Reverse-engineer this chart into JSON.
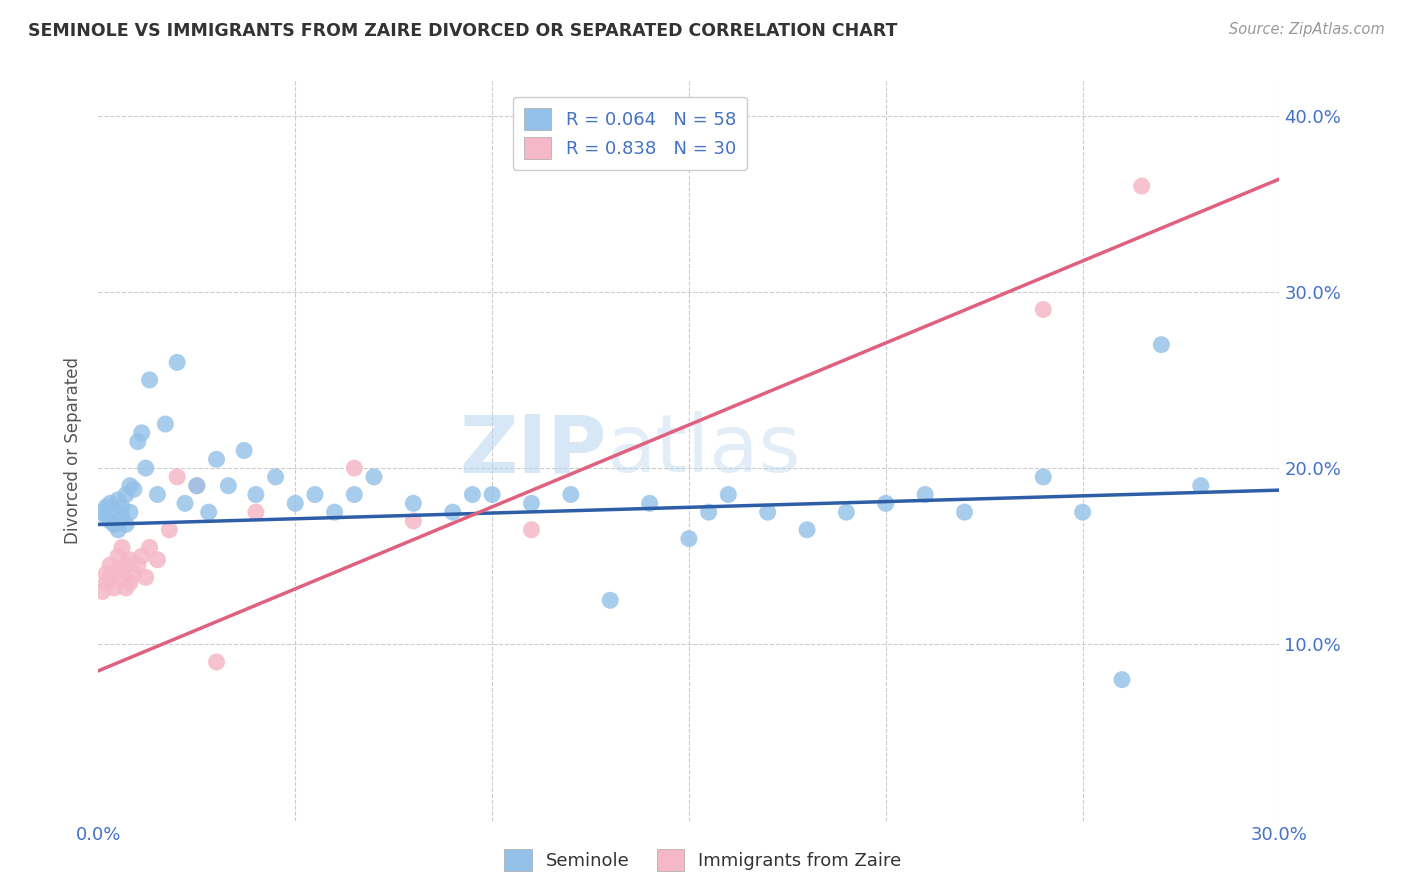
{
  "title": "SEMINOLE VS IMMIGRANTS FROM ZAIRE DIVORCED OR SEPARATED CORRELATION CHART",
  "source": "Source: ZipAtlas.com",
  "ylabel": "Divorced or Separated",
  "xlim": [
    0.0,
    0.3
  ],
  "ylim": [
    0.0,
    0.42
  ],
  "legend_blue_label": "R = 0.064   N = 58",
  "legend_pink_label": "R = 0.838   N = 30",
  "seminole_label": "Seminole",
  "zaire_label": "Immigrants from Zaire",
  "blue_color": "#92c0e8",
  "pink_color": "#f5b8c8",
  "blue_line_color": "#2e5ea8",
  "pink_line_color": "#e06080",
  "watermark_text": "ZIPatlas",
  "seminole_x": [
    0.001,
    0.002,
    0.002,
    0.003,
    0.003,
    0.004,
    0.004,
    0.005,
    0.005,
    0.006,
    0.006,
    0.007,
    0.007,
    0.008,
    0.008,
    0.009,
    0.01,
    0.011,
    0.012,
    0.013,
    0.015,
    0.017,
    0.02,
    0.022,
    0.025,
    0.028,
    0.03,
    0.033,
    0.037,
    0.04,
    0.045,
    0.05,
    0.055,
    0.06,
    0.065,
    0.07,
    0.08,
    0.09,
    0.095,
    0.1,
    0.11,
    0.12,
    0.13,
    0.14,
    0.15,
    0.155,
    0.16,
    0.17,
    0.18,
    0.19,
    0.2,
    0.21,
    0.22,
    0.24,
    0.25,
    0.26,
    0.27,
    0.28
  ],
  "seminole_y": [
    0.175,
    0.178,
    0.172,
    0.18,
    0.17,
    0.175,
    0.168,
    0.182,
    0.165,
    0.178,
    0.172,
    0.185,
    0.168,
    0.19,
    0.175,
    0.188,
    0.215,
    0.22,
    0.2,
    0.25,
    0.185,
    0.225,
    0.26,
    0.18,
    0.19,
    0.175,
    0.205,
    0.19,
    0.21,
    0.185,
    0.195,
    0.18,
    0.185,
    0.175,
    0.185,
    0.195,
    0.18,
    0.175,
    0.185,
    0.185,
    0.18,
    0.185,
    0.125,
    0.18,
    0.16,
    0.175,
    0.185,
    0.175,
    0.165,
    0.175,
    0.18,
    0.185,
    0.175,
    0.195,
    0.175,
    0.08,
    0.27,
    0.19
  ],
  "zaire_x": [
    0.001,
    0.002,
    0.002,
    0.003,
    0.003,
    0.004,
    0.005,
    0.005,
    0.006,
    0.006,
    0.007,
    0.007,
    0.008,
    0.008,
    0.009,
    0.01,
    0.011,
    0.012,
    0.013,
    0.015,
    0.018,
    0.02,
    0.025,
    0.03,
    0.04,
    0.065,
    0.08,
    0.11,
    0.24,
    0.265
  ],
  "zaire_y": [
    0.13,
    0.14,
    0.135,
    0.145,
    0.138,
    0.132,
    0.15,
    0.142,
    0.155,
    0.138,
    0.145,
    0.132,
    0.148,
    0.135,
    0.14,
    0.145,
    0.15,
    0.138,
    0.155,
    0.148,
    0.165,
    0.195,
    0.19,
    0.09,
    0.175,
    0.2,
    0.17,
    0.165,
    0.29,
    0.36
  ],
  "background_color": "#ffffff",
  "grid_color": "#cccccc",
  "blue_line_intercept": 0.168,
  "blue_line_slope": 0.065,
  "pink_line_intercept": 0.085,
  "pink_line_slope": 0.93
}
